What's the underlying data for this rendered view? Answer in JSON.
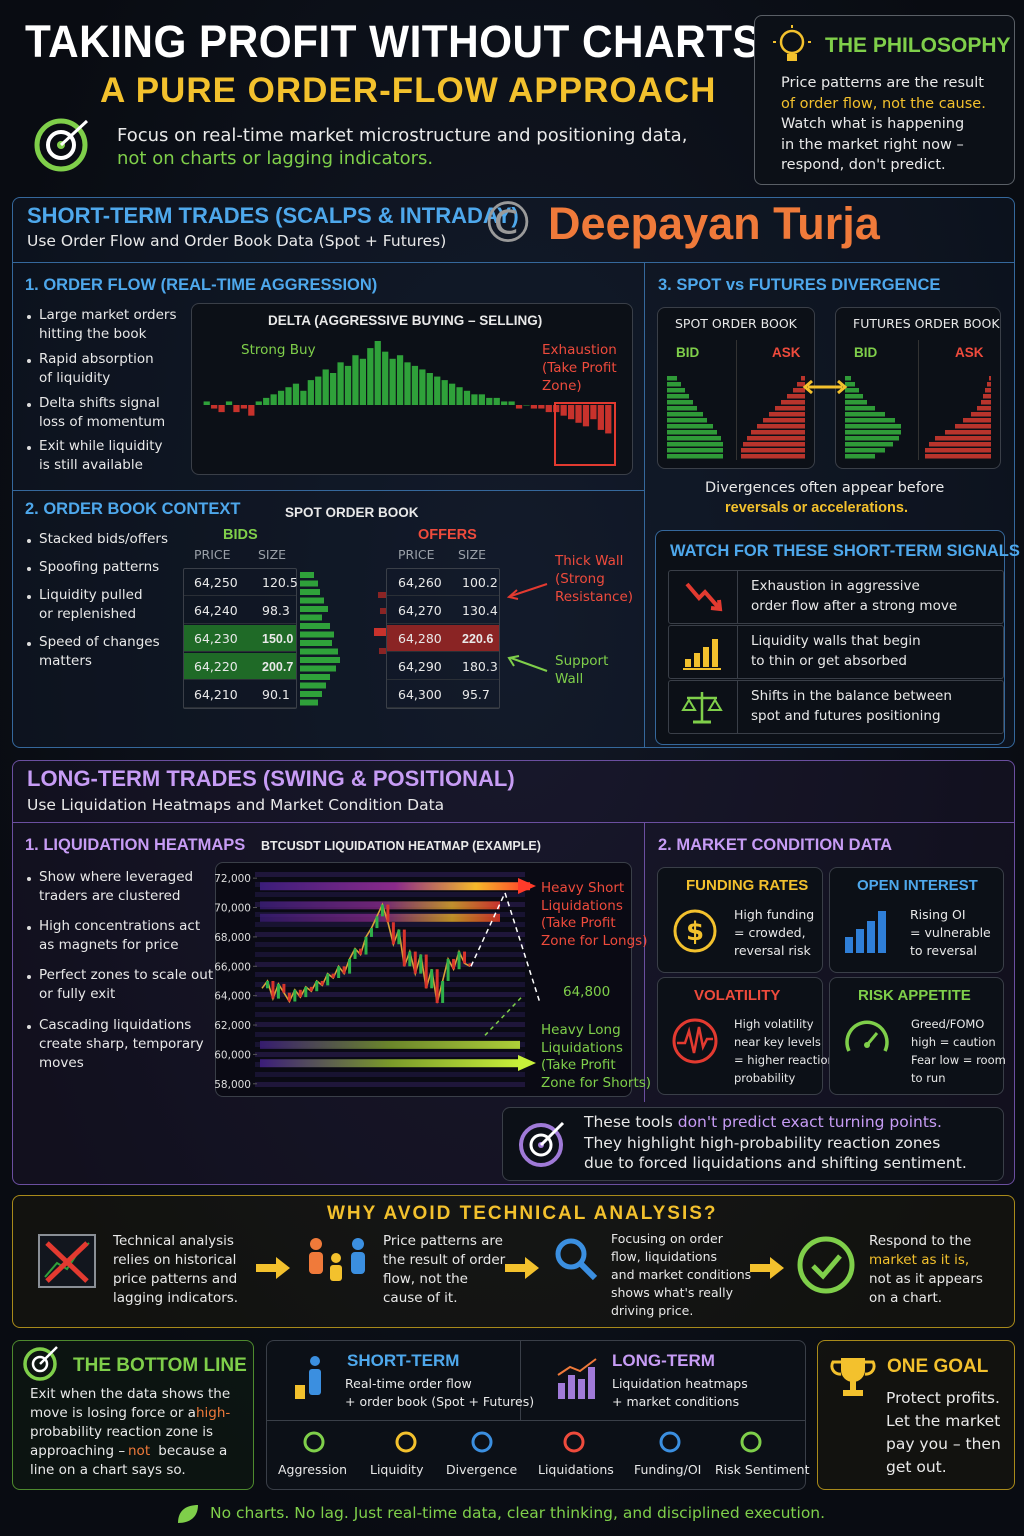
{
  "header": {
    "title": "TAKING PROFIT WITHOUT CHARTS",
    "subtitle": "A PURE ORDER-FLOW APPROACH",
    "focus": [
      "Focus on real-time market microstructure and positioning data,",
      "not on charts or lagging indicators."
    ]
  },
  "philosophy": {
    "title": "THE PHILOSOPHY",
    "lines": [
      "Price patterns are the result",
      "of order flow, not the cause.",
      "Watch what is happening",
      "in the market right now –",
      "respond, don't predict."
    ]
  },
  "watermark": {
    "symbol": "©",
    "name": "Deepayan Turja"
  },
  "short_term": {
    "title": "SHORT-TERM TRADES (SCALPS & INTRADAY)",
    "subtitle": "Use Order Flow and Order Book Data (Spot + Futures)",
    "order_flow": {
      "title": "1. ORDER FLOW (REAL-TIME AGGRESSION)",
      "bullets": [
        [
          "Large market orders",
          "hitting the book"
        ],
        [
          "Rapid absorption",
          "of liquidity"
        ],
        [
          "Delta shifts signal",
          "loss of momentum"
        ],
        [
          "Exit while liquidity",
          "is still available"
        ]
      ],
      "chart": {
        "title": "DELTA  (AGGRESSIVE BUYING – SELLING)",
        "strong_buy": "Strong Buy",
        "exhaustion": [
          "Exhaustion",
          "(Take Profit",
          "Zone)"
        ],
        "values": [
          1,
          -1,
          -2,
          1,
          -2,
          -1,
          -3,
          1,
          2,
          3,
          4,
          5,
          6,
          4,
          7,
          8,
          10,
          9,
          12,
          11,
          14,
          13,
          16,
          18,
          15,
          13,
          14,
          12,
          11,
          10,
          9,
          8,
          7,
          6,
          5,
          4,
          3,
          3,
          2,
          2,
          1,
          1,
          -1,
          0,
          -1,
          -1,
          -2,
          -2,
          -3,
          -4,
          -5,
          -6,
          -4,
          -7,
          -8
        ]
      }
    },
    "order_book": {
      "title": "2. ORDER BOOK CONTEXT",
      "bullets": [
        [
          "Stacked bids/offers"
        ],
        [
          "Spoofing patterns"
        ],
        [
          "Liquidity pulled",
          "or replenished"
        ],
        [
          "Speed of changes",
          "matters"
        ]
      ],
      "book_title": "SPOT ORDER BOOK",
      "headers": [
        "PRICE",
        "SIZE"
      ],
      "bids": {
        "label": "BIDS",
        "rows": [
          [
            "64,250",
            "120.5"
          ],
          [
            "64,240",
            "98.3"
          ],
          [
            "64,230",
            "150.0"
          ],
          [
            "64,220",
            "200.7"
          ],
          [
            "64,210",
            "90.1"
          ]
        ]
      },
      "offers": {
        "label": "OFFERS",
        "rows": [
          [
            "64,260",
            "100.2"
          ],
          [
            "64,270",
            "130.4"
          ],
          [
            "64,280",
            "220.6"
          ],
          [
            "64,290",
            "180.3"
          ],
          [
            "64,300",
            "95.7"
          ]
        ]
      },
      "thick_wall": [
        "Thick Wall",
        "(Strong",
        "Resistance)"
      ],
      "support_wall": [
        "Support",
        "Wall"
      ]
    },
    "divergence": {
      "title": "3. SPOT vs FUTURES DIVERGENCE",
      "spot": "SPOT ORDER BOOK",
      "futures": "FUTURES ORDER BOOK",
      "bid": "BID",
      "ask": "ASK",
      "note": [
        "Divergences often appear before",
        "reversals or accelerations."
      ]
    },
    "signals": {
      "title": "WATCH FOR THESE SHORT-TERM SIGNALS",
      "items": [
        [
          "Exhaustion in aggressive",
          "order flow after a strong move"
        ],
        [
          "Liquidity walls that begin",
          "to thin or get absorbed"
        ],
        [
          "Shifts in the balance between",
          "spot and futures positioning"
        ]
      ]
    }
  },
  "long_term": {
    "title": "LONG-TERM TRADES (SWING & POSITIONAL)",
    "subtitle": "Use Liquidation Heatmaps and Market Condition Data",
    "heatmaps": {
      "title": "1. LIQUIDATION HEATMAPS",
      "bullets": [
        [
          "Show where leveraged",
          "traders are clustered"
        ],
        [
          "High concentrations act",
          "as magnets for price"
        ],
        [
          "Perfect zones to scale out",
          "or fully exit"
        ],
        [
          "Cascading liquidations",
          "create sharp, temporary",
          "moves"
        ]
      ],
      "chart": {
        "title": "BTCUSDT LIQUIDATION HEATMAP (EXAMPLE)",
        "ylim": [
          57100,
          73100
        ],
        "yticks": [
          {
            "value": 72000,
            "label": "72,000"
          },
          {
            "value": 70000,
            "label": "70,000"
          },
          {
            "value": 68000,
            "label": "68,000"
          },
          {
            "value": 66000,
            "label": "66,000"
          },
          {
            "value": 64000,
            "label": "64,000"
          },
          {
            "value": 62000,
            "label": "62,000"
          },
          {
            "value": 60000,
            "label": "60,000"
          },
          {
            "value": 58000,
            "label": "58,000"
          }
        ],
        "price": [
          64500,
          65000,
          63800,
          64800,
          64200,
          63600,
          64400,
          63900,
          64600,
          64300,
          65000,
          64700,
          65500,
          65200,
          66000,
          65500,
          66500,
          67200,
          66800,
          68000,
          68600,
          69400,
          70200,
          69000,
          67500,
          68500,
          66000,
          67000,
          65500,
          66800,
          64500,
          65800,
          63500,
          65000,
          66500,
          65800,
          67000,
          66200,
          66000
        ],
        "short_liquidation_levels": [
          71450,
          70150,
          69300
        ],
        "long_liquidation_levels": [
          60650,
          59400
        ],
        "short_label": [
          "Heavy Short",
          "Liquidations",
          "(Take Profit",
          "Zone for Longs)"
        ],
        "target": "64,800",
        "long_label": [
          "Heavy Long",
          "Liquidations",
          "(Take Profit",
          "Zone for Shorts)"
        ]
      }
    },
    "market": {
      "title": "2. MARKET CONDITION DATA",
      "boxes": [
        {
          "title": "FUNDING RATES",
          "lines": [
            "High funding",
            "= crowded,",
            "reversal risk"
          ]
        },
        {
          "title": "OPEN INTEREST",
          "lines": [
            "Rising OI",
            "= vulnerable",
            "to reversal"
          ]
        },
        {
          "title": "VOLATILITY",
          "lines": [
            "High volatility",
            "near key levels",
            "= higher reaction",
            "probability"
          ]
        },
        {
          "title": "RISK APPETITE",
          "lines": [
            "Greed/FOMO",
            "high = caution",
            "Fear low = room",
            "to run"
          ]
        }
      ]
    },
    "note": {
      "lead": "These tools ",
      "highlight": "don't predict exact turning points.",
      "lines": [
        "They highlight high-probability reaction zones",
        "due to forced liquidations and shifting sentiment."
      ]
    }
  },
  "why": {
    "title": "WHY AVOID TECHNICAL ANALYSIS?",
    "items": [
      [
        "Technical analysis",
        "relies on historical",
        "price patterns and",
        "lagging indicators."
      ],
      [
        "Price patterns are",
        "the result of order",
        "flow, not the",
        "cause of it."
      ],
      [
        "Focusing on order",
        "flow, liquidations",
        "and market conditions",
        "shows what's really",
        "driving price."
      ],
      [
        "Respond to the",
        "market as it is,",
        "not as it appears",
        "on a chart."
      ]
    ]
  },
  "bottom_line": {
    "title": "THE BOTTOM LINE",
    "parts": [
      "Exit when the data shows the",
      "move is losing force or a ",
      "high-",
      "probability reaction zone is",
      "approaching – ",
      "not",
      " because a",
      "line on a chart says so."
    ]
  },
  "summary": {
    "short": {
      "title": "SHORT-TERM",
      "lines": [
        "Real-time order flow",
        "+ order book (Spot + Futures)"
      ]
    },
    "long": {
      "title": "LONG-TERM",
      "lines": [
        "Liquidation heatmaps",
        "+ market conditions"
      ]
    },
    "tags": [
      "Aggression",
      "Liquidity",
      "Divergence",
      "Liquidations",
      "Funding/OI",
      "Risk Sentiment"
    ]
  },
  "goal": {
    "title": "ONE GOAL",
    "lines": [
      "Protect profits.",
      "Let the market",
      "pay you – then",
      "get out."
    ]
  },
  "footer": "No charts. No lag. Just real-time data, clear thinking, and disciplined execution."
}
